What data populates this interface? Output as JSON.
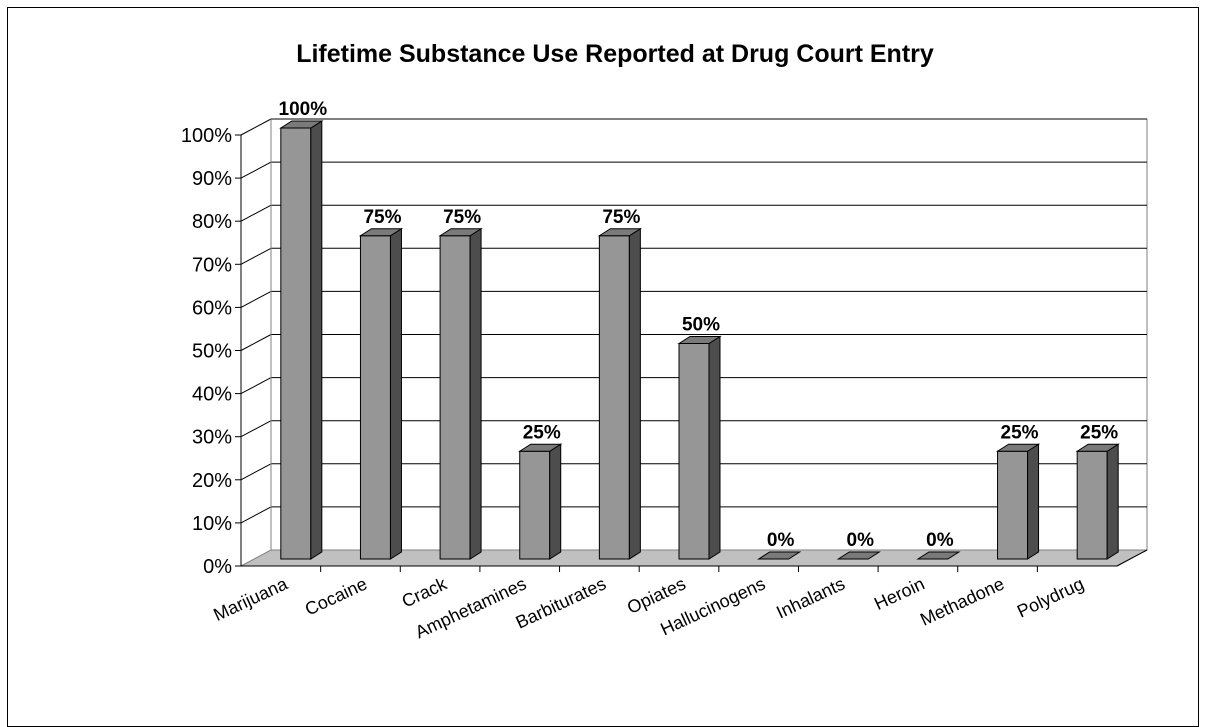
{
  "chart_data": {
    "type": "bar",
    "title": "Lifetime Substance Use Reported at Drug Court Entry",
    "xlabel": "",
    "ylabel": "",
    "categories": [
      "Marijuana",
      "Cocaine",
      "Crack",
      "Amphetamines",
      "Barbiturates",
      "Opiates",
      "Hallucinogens",
      "Inhalants",
      "Heroin",
      "Methadone",
      "Polydrug"
    ],
    "values": [
      100,
      75,
      75,
      25,
      75,
      50,
      0,
      0,
      0,
      25,
      25
    ],
    "data_labels": [
      "100%",
      "75%",
      "75%",
      "25%",
      "75%",
      "50%",
      "0%",
      "0%",
      "0%",
      "25%",
      "25%"
    ],
    "ylim": [
      0,
      100
    ],
    "y_ticks": [
      "0%",
      "10%",
      "20%",
      "30%",
      "40%",
      "50%",
      "60%",
      "70%",
      "80%",
      "90%",
      "100%"
    ],
    "grid": true,
    "bar_color": "#969696",
    "floor_color": "#c0c0c0"
  }
}
